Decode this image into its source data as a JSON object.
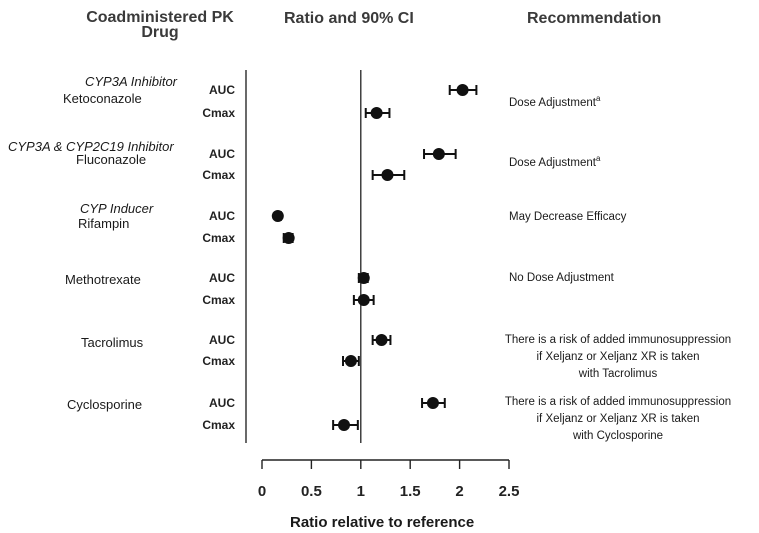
{
  "headers": {
    "drug_line1": "Coadministered PK",
    "drug_line2": "Drug",
    "ratio": "Ratio and 90% CI",
    "recommendation": "Recommendation"
  },
  "groups": [
    {
      "class": "CYP3A Inhibitor",
      "drug": "Ketoconazole",
      "rec": [
        "Dose Adjustment"
      ],
      "rec_sup": "a"
    },
    {
      "class": "CYP3A & CYP2C19 Inhibitor",
      "drug": "Fluconazole",
      "rec": [
        "Dose Adjustment"
      ],
      "rec_sup": "a"
    },
    {
      "class": "CYP Inducer",
      "drug": "Rifampin",
      "rec": [
        "May Decrease Efficacy"
      ],
      "rec_sup": ""
    },
    {
      "class": "",
      "drug": "Methotrexate",
      "rec": [
        "No Dose Adjustment"
      ],
      "rec_sup": ""
    },
    {
      "class": "",
      "drug": "Tacrolimus",
      "rec": [
        "There is a risk of added immunosuppression",
        "if Xeljanz or Xeljanz XR is taken",
        "with Tacrolimus"
      ],
      "rec_sup": ""
    },
    {
      "class": "",
      "drug": "Cyclosporine",
      "rec": [
        "There is a risk of added immunosuppression",
        "if Xeljanz or Xeljanz XR is taken",
        "with Cyclosporine"
      ],
      "rec_sup": ""
    }
  ],
  "chart_data": {
    "type": "scatter",
    "xlabel": "Ratio relative to reference",
    "xlim": [
      0,
      2.5
    ],
    "xticks": [
      0,
      0.5,
      1,
      1.5,
      2,
      2.5
    ],
    "xtick_labels": [
      "0",
      "0.5",
      "1",
      "1.5",
      "2",
      "2.5"
    ],
    "reference_line": 1,
    "rows": [
      {
        "drug": "Ketoconazole",
        "metric": "AUC",
        "ratio": 2.03,
        "ci": [
          1.9,
          2.17
        ]
      },
      {
        "drug": "Ketoconazole",
        "metric": "Cmax",
        "ratio": 1.16,
        "ci": [
          1.05,
          1.29
        ]
      },
      {
        "drug": "Fluconazole",
        "metric": "AUC",
        "ratio": 1.79,
        "ci": [
          1.64,
          1.96
        ]
      },
      {
        "drug": "Fluconazole",
        "metric": "Cmax",
        "ratio": 1.27,
        "ci": [
          1.12,
          1.44
        ]
      },
      {
        "drug": "Rifampin",
        "metric": "AUC",
        "ratio": 0.16,
        "ci": [
          0.14,
          0.19
        ]
      },
      {
        "drug": "Rifampin",
        "metric": "Cmax",
        "ratio": 0.27,
        "ci": [
          0.22,
          0.31
        ]
      },
      {
        "drug": "Methotrexate",
        "metric": "AUC",
        "ratio": 1.03,
        "ci": [
          0.98,
          1.07
        ]
      },
      {
        "drug": "Methotrexate",
        "metric": "Cmax",
        "ratio": 1.03,
        "ci": [
          0.93,
          1.13
        ]
      },
      {
        "drug": "Tacrolimus",
        "metric": "AUC",
        "ratio": 1.21,
        "ci": [
          1.12,
          1.3
        ]
      },
      {
        "drug": "Tacrolimus",
        "metric": "Cmax",
        "ratio": 0.9,
        "ci": [
          0.82,
          0.98
        ]
      },
      {
        "drug": "Cyclosporine",
        "metric": "AUC",
        "ratio": 1.73,
        "ci": [
          1.62,
          1.85
        ]
      },
      {
        "drug": "Cyclosporine",
        "metric": "Cmax",
        "ratio": 0.83,
        "ci": [
          0.72,
          0.97
        ]
      }
    ]
  }
}
